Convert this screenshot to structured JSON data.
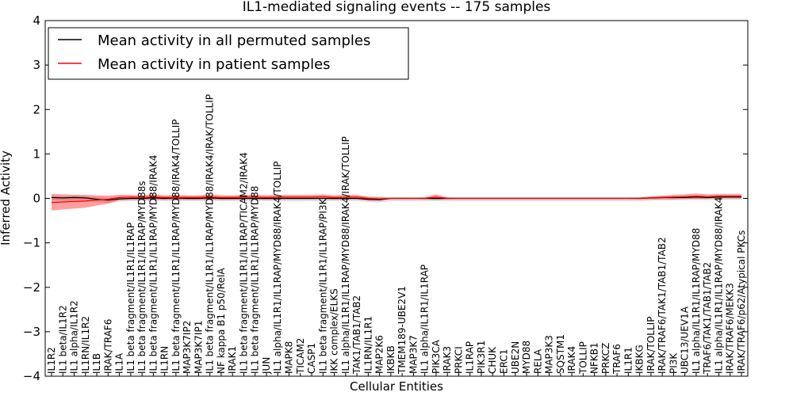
{
  "chart_data": {
    "type": "line",
    "title": "IL1-mediated signaling events -- 175 samples",
    "xlabel": "Cellular Entities",
    "ylabel": "Inferred Activity",
    "ylim": [
      -4,
      4
    ],
    "yticks": [
      "−4",
      "−3",
      "−2",
      "−1",
      "0",
      "1",
      "2",
      "3",
      "4"
    ],
    "yticks_values": [
      -4,
      -3,
      -2,
      -1,
      0,
      1,
      2,
      3,
      4
    ],
    "legend": {
      "placement": "top-left",
      "entries": [
        {
          "label": "Mean activity in all permuted samples",
          "color": "#000000"
        },
        {
          "label": "Mean activity in patient samples",
          "color": "#ff0000"
        }
      ]
    },
    "categories": [
      "IL1R2",
      "IL1 beta/IL1R2",
      "IL1 alpha/IL1R2",
      "IL1RN/IL1R2",
      "IL1B",
      "IRAK/TRAF6",
      "IL1A",
      "IL1 beta fragment/IL1R1/IL1RAP",
      "IL1 beta fragment/IL1R1/IL1RAP/MYD88s",
      "IL1 beta fragment/IL1R1/IL1RAP/MYD88/IRAK4",
      "IL1RN",
      "IL1 beta fragment/IL1R1/IL1RAP/MYD88/IRAK4/TOLLIP",
      "MAP3K7IP2",
      "MAP3K7IP1",
      "IL1 beta fragment/IL1R1/IL1RAP/MYD88/IRAK4/IRAK/TOLLIP",
      "NF kappa B1 p50/RelA",
      "IRAK1",
      "IL1 beta fragment/IL1R1/IL1RAP/TICAM2/IRAK4",
      "IL1 beta fragment/IL1R1/IL1RAP/MYD88",
      "JUN",
      "IL1 alpha/IL1R1/IL1RAP/MYD88/IRAK4/TOLLIP",
      "MAPK8",
      "TICAM2",
      "CASP1",
      "IL1 beta fragment/IL1R1/IL1RAP/PI3K",
      "IKK complex/ELKS",
      "IL1 alpha/IL1R1/IL1RAP/MYD88/IRAK4/IRAK/TOLLIP",
      "TAK1/TAB1/TAB2",
      "IL1RN/IL1R1",
      "MAP2K6",
      "IKBKB",
      "TMEM189-UBE2V1",
      "MAP3K7",
      "IL1 alpha/IL1R1/IL1RAP",
      "PIK3CA",
      "IRAK3",
      "PRKCI",
      "IL1RAP",
      "PIK3R1",
      "CHUK",
      "ERC1",
      "UBE2N",
      "MYD88",
      "RELA",
      "MAP3K3",
      "SQSTM1",
      "IRAK4",
      "TOLLIP",
      "NFKB1",
      "PRKCZ",
      "TRAF6",
      "IL1R1",
      "IKBKG",
      "IRAK/TOLLIP",
      "IRAK/TRAF6/TAK1/TAB1/TAB2",
      "PI3K",
      "UBC13/UEV1A",
      "IL1 alpha/IL1R1/IL1RAP/MYD88",
      "TRAF6/TAK1/TAB1/TAB2",
      "IL1 alpha/IL1R1/IL1RAP/MYD88/IRAK4",
      "IRAK/TRAF6/MEKK3",
      "IRAK/TRAF6/p62/Atypical PKCs"
    ],
    "series": [
      {
        "name": "Mean activity in all permuted samples",
        "color": "#000000",
        "values": [
          0.02,
          0.01,
          0.02,
          0.01,
          -0.02,
          -0.04,
          -0.01,
          0.0,
          0.0,
          0.01,
          0.0,
          0.01,
          0.0,
          0.0,
          0.01,
          0.0,
          0.0,
          0.0,
          0.0,
          0.0,
          0.0,
          0.0,
          0.0,
          0.0,
          0.0,
          0.0,
          0.0,
          0.0,
          -0.02,
          -0.03,
          0.0,
          0.0,
          0.0,
          0.0,
          0.0,
          0.0,
          0.0,
          0.0,
          0.0,
          0.0,
          0.0,
          0.0,
          0.0,
          0.0,
          0.0,
          0.0,
          0.0,
          0.0,
          0.0,
          0.0,
          0.0,
          0.0,
          0.0,
          0.01,
          0.02,
          0.02,
          0.02,
          0.03,
          0.02,
          0.03,
          0.03,
          0.03
        ]
      },
      {
        "name": "Mean activity in patient samples",
        "color": "#ff0000",
        "values": [
          -0.09,
          -0.08,
          -0.07,
          -0.06,
          -0.04,
          -0.02,
          0.02,
          0.03,
          0.02,
          0.03,
          0.02,
          0.02,
          0.02,
          0.02,
          0.03,
          0.02,
          0.02,
          0.03,
          0.03,
          0.02,
          0.03,
          0.03,
          0.03,
          0.03,
          0.04,
          0.02,
          0.03,
          0.03,
          0.0,
          -0.01,
          0.0,
          0.0,
          0.0,
          0.0,
          0.03,
          0.0,
          0.0,
          0.0,
          0.0,
          0.0,
          0.0,
          0.0,
          0.0,
          0.0,
          0.0,
          0.0,
          0.0,
          0.0,
          0.0,
          0.0,
          0.0,
          0.0,
          0.0,
          0.01,
          0.02,
          0.03,
          0.04,
          0.05,
          0.04,
          0.05,
          0.05,
          0.05
        ]
      }
    ],
    "patient_band": {
      "upper": [
        0.1,
        0.09,
        0.08,
        0.08,
        0.07,
        0.06,
        0.08,
        0.08,
        0.07,
        0.09,
        0.07,
        0.08,
        0.07,
        0.07,
        0.09,
        0.07,
        0.07,
        0.08,
        0.08,
        0.07,
        0.08,
        0.08,
        0.08,
        0.08,
        0.09,
        0.07,
        0.08,
        0.08,
        0.04,
        0.03,
        0.01,
        0.01,
        0.01,
        0.02,
        0.09,
        0.02,
        0.01,
        0.01,
        0.01,
        0.01,
        0.01,
        0.01,
        0.01,
        0.01,
        0.01,
        0.01,
        0.01,
        0.01,
        0.01,
        0.01,
        0.01,
        0.01,
        0.02,
        0.04,
        0.06,
        0.08,
        0.09,
        0.11,
        0.09,
        0.1,
        0.1,
        0.1
      ],
      "lower": [
        -0.27,
        -0.25,
        -0.23,
        -0.21,
        -0.16,
        -0.12,
        -0.04,
        -0.03,
        -0.03,
        -0.03,
        -0.03,
        -0.04,
        -0.03,
        -0.03,
        -0.03,
        -0.03,
        -0.03,
        -0.02,
        -0.02,
        -0.03,
        -0.02,
        -0.02,
        -0.02,
        -0.02,
        -0.01,
        -0.03,
        -0.02,
        -0.02,
        -0.05,
        -0.05,
        -0.01,
        -0.01,
        -0.01,
        -0.02,
        -0.03,
        -0.02,
        -0.01,
        -0.01,
        -0.01,
        -0.01,
        -0.01,
        -0.01,
        -0.01,
        -0.01,
        -0.01,
        -0.01,
        -0.01,
        -0.01,
        -0.01,
        -0.01,
        -0.01,
        -0.01,
        -0.02,
        -0.02,
        -0.02,
        -0.02,
        -0.01,
        -0.01,
        -0.01,
        0.0,
        0.0,
        0.0
      ]
    },
    "permuted_band": {
      "upper": [
        0.06,
        0.05,
        0.06,
        0.05,
        0.03,
        0.01,
        0.04,
        0.04,
        0.04,
        0.05,
        0.04,
        0.05,
        0.04,
        0.04,
        0.05,
        0.04,
        0.04,
        0.04,
        0.04,
        0.04,
        0.04,
        0.04,
        0.04,
        0.04,
        0.04,
        0.04,
        0.04,
        0.04,
        0.03,
        0.02,
        0.03,
        0.03,
        0.03,
        0.03,
        0.03,
        0.03,
        0.03,
        0.03,
        0.03,
        0.03,
        0.03,
        0.03,
        0.03,
        0.03,
        0.03,
        0.03,
        0.03,
        0.03,
        0.03,
        0.03,
        0.03,
        0.03,
        0.03,
        0.04,
        0.05,
        0.05,
        0.05,
        0.06,
        0.05,
        0.06,
        0.06,
        0.06
      ],
      "lower": [
        -0.04,
        -0.05,
        -0.04,
        -0.05,
        -0.08,
        -0.1,
        -0.07,
        -0.06,
        -0.06,
        -0.05,
        -0.06,
        -0.05,
        -0.06,
        -0.06,
        -0.05,
        -0.06,
        -0.06,
        -0.06,
        -0.06,
        -0.06,
        -0.06,
        -0.06,
        -0.06,
        -0.06,
        -0.06,
        -0.06,
        -0.06,
        -0.06,
        -0.08,
        -0.09,
        -0.06,
        -0.06,
        -0.06,
        -0.06,
        -0.06,
        -0.06,
        -0.06,
        -0.06,
        -0.06,
        -0.06,
        -0.06,
        -0.06,
        -0.06,
        -0.06,
        -0.06,
        -0.06,
        -0.06,
        -0.06,
        -0.06,
        -0.06,
        -0.06,
        -0.06,
        -0.06,
        -0.05,
        -0.04,
        -0.04,
        -0.04,
        -0.03,
        -0.04,
        -0.03,
        -0.03,
        -0.03
      ]
    }
  }
}
